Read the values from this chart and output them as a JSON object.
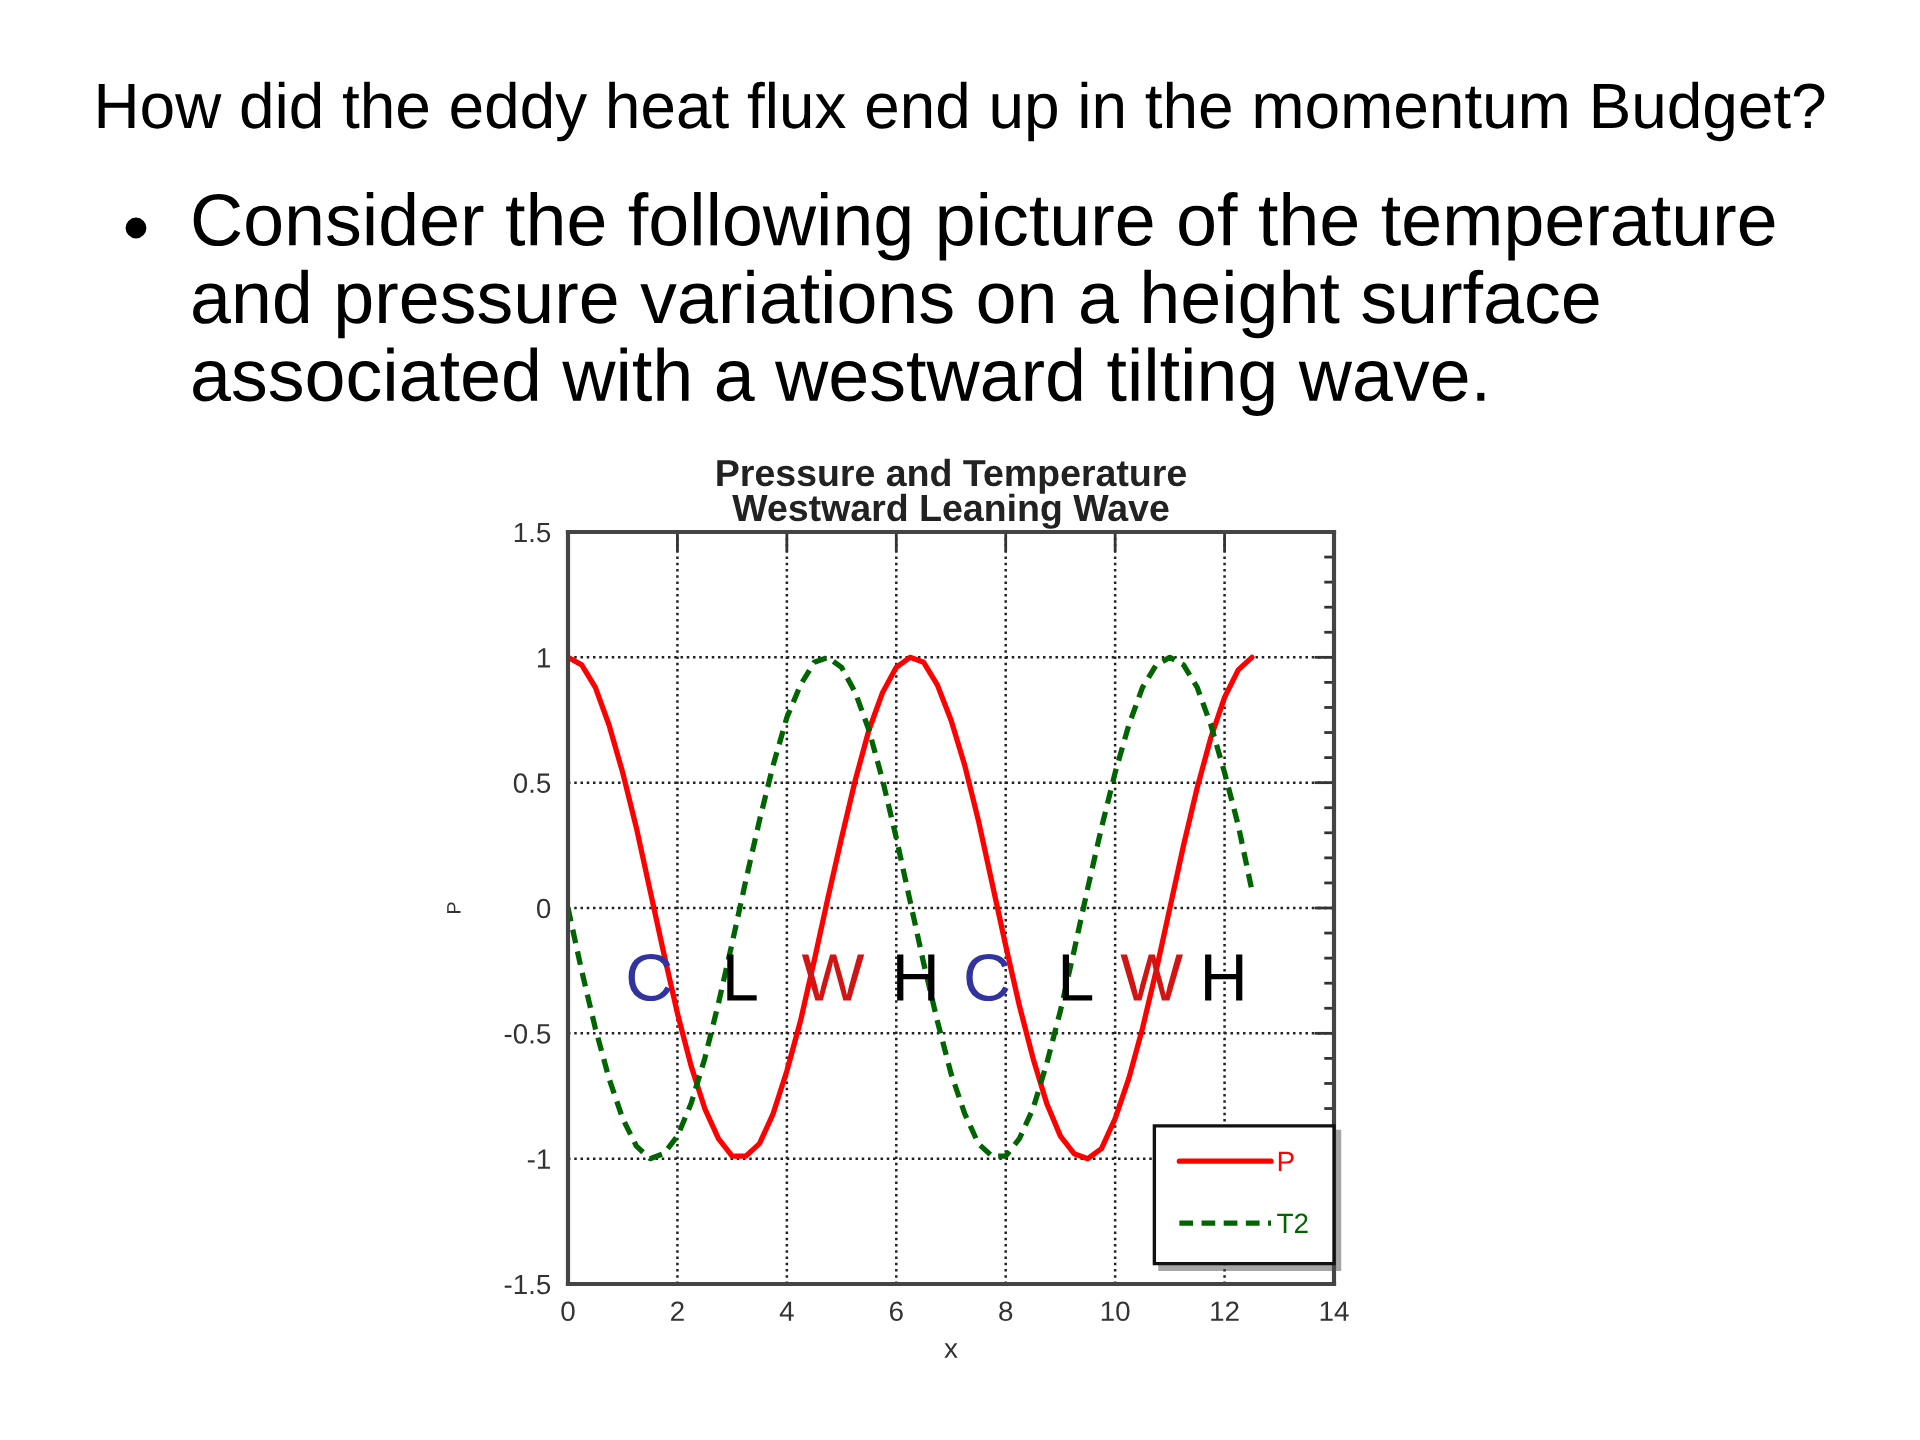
{
  "chart_data": {
    "type": "line",
    "title": "Pressure and Temperature\nWestward Leaning Wave",
    "xlabel": "x",
    "ylabel": "P",
    "annotations": [
      "How did the eddy heat flux end up in the momentum Budget?",
      "Consider the following picture of the temperature\nand pressure variations on a height surface\nassociated with a westward tilting wave.",
      "C",
      "L",
      "W",
      "H",
      "C",
      "L",
      "W",
      "H"
    ],
    "x": [
      0,
      0.25,
      0.5,
      0.75,
      1,
      1.25,
      1.5,
      1.75,
      2,
      2.25,
      2.5,
      2.75,
      3,
      3.25,
      3.5,
      3.75,
      4,
      4.25,
      4.5,
      4.75,
      5,
      5.25,
      5.5,
      5.75,
      6,
      6.25,
      6.5,
      6.75,
      7,
      7.25,
      7.5,
      7.75,
      8,
      8.25,
      8.5,
      8.75,
      9,
      9.25,
      9.5,
      9.75,
      10,
      10.25,
      10.5,
      10.75,
      11,
      11.25,
      11.5,
      11.75,
      12,
      12.25,
      12.5
    ],
    "series": [
      {
        "name": "P",
        "color": "#ff0000",
        "line_style": "solid",
        "values": [
          1.0,
          0.97,
          0.88,
          0.73,
          0.54,
          0.32,
          0.07,
          -0.18,
          -0.42,
          -0.63,
          -0.8,
          -0.92,
          -0.99,
          -0.99,
          -0.94,
          -0.82,
          -0.65,
          -0.45,
          -0.21,
          0.04,
          0.28,
          0.51,
          0.71,
          0.86,
          0.96,
          1.0,
          0.98,
          0.89,
          0.75,
          0.57,
          0.35,
          0.1,
          -0.15,
          -0.39,
          -0.6,
          -0.78,
          -0.91,
          -0.98,
          -1.0,
          -0.96,
          -0.84,
          -0.68,
          -0.48,
          -0.25,
          0.0,
          0.25,
          0.48,
          0.68,
          0.84,
          0.95,
          1.0
        ]
      },
      {
        "name": "T2",
        "color": "#006400",
        "line_style": "dashed",
        "values": [
          0.0,
          -0.25,
          -0.48,
          -0.68,
          -0.84,
          -0.95,
          -1.0,
          -0.98,
          -0.91,
          -0.78,
          -0.6,
          -0.38,
          -0.14,
          0.11,
          0.35,
          0.57,
          0.76,
          0.89,
          0.98,
          1.0,
          0.96,
          0.86,
          0.71,
          0.51,
          0.28,
          0.03,
          -0.22,
          -0.45,
          -0.66,
          -0.82,
          -0.94,
          -0.99,
          -0.99,
          -0.92,
          -0.8,
          -0.62,
          -0.41,
          -0.17,
          0.08,
          0.32,
          0.54,
          0.73,
          0.88,
          0.97,
          1.0,
          0.97,
          0.88,
          0.73,
          0.54,
          0.33,
          0.07
        ]
      }
    ],
    "xlim": [
      0,
      14
    ],
    "xticks": [
      0,
      2,
      4,
      6,
      8,
      10,
      12,
      14
    ],
    "ylim": [
      -1.5,
      1.5
    ],
    "yticks": [
      -1.5,
      -1,
      -0.5,
      0,
      0.5,
      1,
      1.5
    ],
    "grid": true,
    "legend": "bottom right"
  }
}
